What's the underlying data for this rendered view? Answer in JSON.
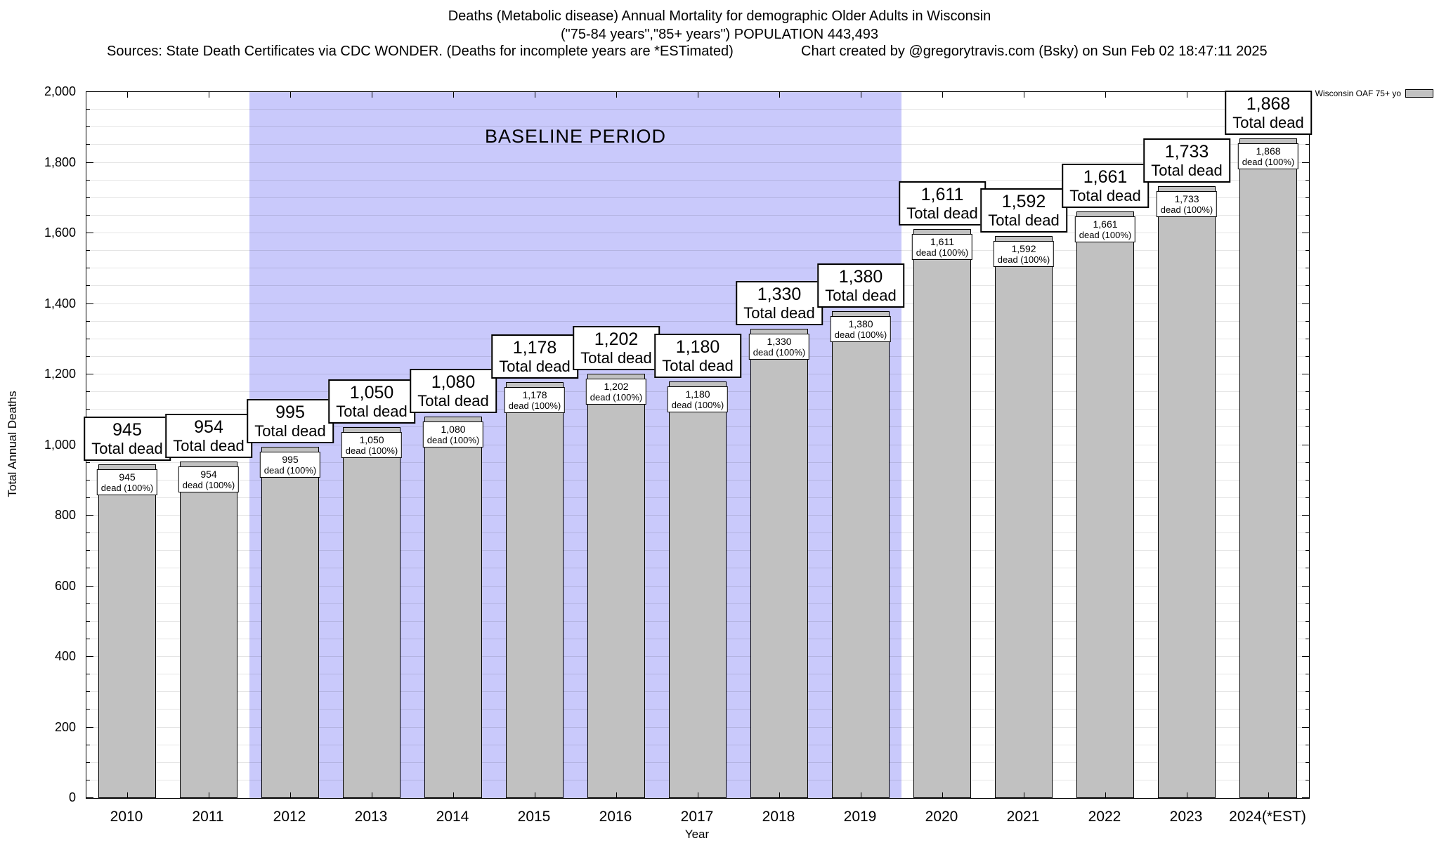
{
  "header": {
    "title_line1": "Deaths (Metabolic disease) Annual Mortality for demographic Older Adults in Wisconsin",
    "title_line2": "(\"75-84 years\",\"85+ years\") POPULATION 443,493",
    "sources": "Sources: State Death Certificates via CDC WONDER. (Deaths for incomplete years are *ESTimated)",
    "credit": "Chart created by @gregorytravis.com (Bsky) on Sun Feb 02 18:47:11 2025"
  },
  "legend": {
    "label": "Wisconsin OAF 75+ yo"
  },
  "chart_data": {
    "type": "bar",
    "title": "Deaths (Metabolic disease) Annual Mortality for demographic Older Adults in Wisconsin",
    "subtitle": "(\"75-84 years\",\"85+ years\") POPULATION 443,493",
    "xlabel": "Year",
    "ylabel": "Total Annual Deaths",
    "ylim": [
      0,
      2000
    ],
    "y_major_tick_interval": 200,
    "y_minor_tick_interval": 50,
    "grid": true,
    "legend_position": "top-right-outside",
    "categories": [
      "2010",
      "2011",
      "2012",
      "2013",
      "2014",
      "2015",
      "2016",
      "2017",
      "2018",
      "2019",
      "2020",
      "2021",
      "2022",
      "2023",
      "2024(*EST)"
    ],
    "values": [
      945,
      954,
      995,
      1050,
      1080,
      1178,
      1202,
      1180,
      1330,
      1380,
      1611,
      1592,
      1661,
      1733,
      1868
    ],
    "bar_color": "#c1c1c1",
    "big_label_suffix": "Total dead",
    "small_label_suffix": "dead (100%)",
    "baseline_region": {
      "label": "BASELINE PERIOD",
      "start_category": "2012",
      "end_category": "2019",
      "color": "#c9c9fb"
    }
  }
}
